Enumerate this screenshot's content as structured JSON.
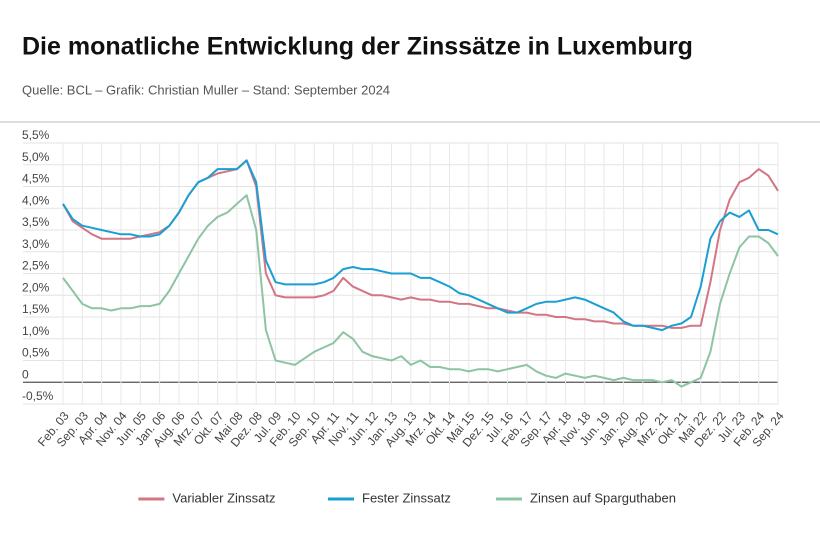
{
  "chart_data": {
    "type": "line",
    "title": "Die monatliche Entwicklung der Zinssätze in Luxemburg",
    "subtitle": "Quelle: BCL – Grafik: Christian Muller – Stand: September 2024",
    "categories": [
      "Feb. 03",
      null,
      "Sep. 03",
      null,
      "Apr. 04",
      null,
      "Nov. 04",
      null,
      "Jun. 05",
      null,
      "Jan. 06",
      null,
      "Aug. 06",
      null,
      "Mrz. 07",
      null,
      "Okt. 07",
      null,
      "Mai 08",
      null,
      "Dez. 08",
      null,
      "Jul. 09",
      null,
      "Feb. 10",
      null,
      "Sep. 10",
      null,
      "Apr. 11",
      null,
      "Nov. 11",
      null,
      "Jun. 12",
      null,
      "Jan. 13",
      null,
      "Aug. 13",
      null,
      "Mrz. 14",
      null,
      "Okt. 14",
      null,
      "Mai 15",
      null,
      "Dez. 15",
      null,
      "Jul. 16",
      null,
      "Feb. 17",
      null,
      "Sep. 17",
      null,
      "Apr. 18",
      null,
      "Nov. 18",
      null,
      "Jun. 19",
      null,
      "Jan. 20",
      null,
      "Aug. 20",
      null,
      "Mrz. 21",
      null,
      "Okt. 21",
      null,
      "Mai 22",
      null,
      "Dez. 22",
      null,
      "Jul. 23",
      null,
      "Feb. 24",
      null,
      "Sep. 24"
    ],
    "series": [
      {
        "name": "Variabler Zinssatz",
        "color": "#d27584",
        "values": [
          4.1,
          3.7,
          3.55,
          3.4,
          3.3,
          3.3,
          3.3,
          3.3,
          3.35,
          3.4,
          3.45,
          3.6,
          3.9,
          4.3,
          4.6,
          4.7,
          4.8,
          4.85,
          4.9,
          5.1,
          4.5,
          2.5,
          2.0,
          1.95,
          1.95,
          1.95,
          1.95,
          2.0,
          2.1,
          2.4,
          2.2,
          2.1,
          2.0,
          2.0,
          1.95,
          1.9,
          1.95,
          1.9,
          1.9,
          1.85,
          1.85,
          1.8,
          1.8,
          1.75,
          1.7,
          1.7,
          1.65,
          1.6,
          1.6,
          1.55,
          1.55,
          1.5,
          1.5,
          1.45,
          1.45,
          1.4,
          1.4,
          1.35,
          1.35,
          1.3,
          1.3,
          1.3,
          1.3,
          1.25,
          1.25,
          1.3,
          1.3,
          2.3,
          3.5,
          4.2,
          4.6,
          4.7,
          4.9,
          4.75,
          4.4
        ]
      },
      {
        "name": "Fester Zinssatz",
        "color": "#1a9fd3",
        "values": [
          4.1,
          3.75,
          3.6,
          3.55,
          3.5,
          3.45,
          3.4,
          3.4,
          3.35,
          3.35,
          3.4,
          3.6,
          3.9,
          4.3,
          4.6,
          4.7,
          4.9,
          4.9,
          4.9,
          5.1,
          4.6,
          2.8,
          2.3,
          2.25,
          2.25,
          2.25,
          2.25,
          2.3,
          2.4,
          2.6,
          2.65,
          2.6,
          2.6,
          2.55,
          2.5,
          2.5,
          2.5,
          2.4,
          2.4,
          2.3,
          2.2,
          2.05,
          2.0,
          1.9,
          1.8,
          1.7,
          1.6,
          1.6,
          1.7,
          1.8,
          1.85,
          1.85,
          1.9,
          1.95,
          1.9,
          1.8,
          1.7,
          1.6,
          1.4,
          1.3,
          1.3,
          1.25,
          1.2,
          1.3,
          1.35,
          1.5,
          2.2,
          3.3,
          3.7,
          3.9,
          3.8,
          3.95,
          3.5,
          3.5,
          3.4
        ]
      },
      {
        "name": "Zinsen auf Sparguthaben",
        "color": "#8dc4a3",
        "values": [
          2.4,
          2.1,
          1.8,
          1.7,
          1.7,
          1.65,
          1.7,
          1.7,
          1.75,
          1.75,
          1.8,
          2.1,
          2.5,
          2.9,
          3.3,
          3.6,
          3.8,
          3.9,
          4.1,
          4.3,
          3.5,
          1.2,
          0.5,
          0.45,
          0.4,
          0.55,
          0.7,
          0.8,
          0.9,
          1.15,
          1.0,
          0.7,
          0.6,
          0.55,
          0.5,
          0.6,
          0.4,
          0.5,
          0.35,
          0.35,
          0.3,
          0.3,
          0.25,
          0.3,
          0.3,
          0.25,
          0.3,
          0.35,
          0.4,
          0.25,
          0.15,
          0.1,
          0.2,
          0.15,
          0.1,
          0.15,
          0.1,
          0.05,
          0.1,
          0.05,
          0.05,
          0.05,
          0.0,
          0.05,
          -0.1,
          0.0,
          0.1,
          0.7,
          1.8,
          2.5,
          3.1,
          3.35,
          3.35,
          3.2,
          2.9
        ]
      }
    ],
    "ylim": [
      -0.5,
      5.5
    ],
    "yticks": [
      {
        "value": -0.5,
        "label": "-0,5%"
      },
      0,
      {
        "value": 0.5,
        "label": "0,5%"
      },
      {
        "value": 1,
        "label": "1,0%"
      },
      {
        "value": 1.5,
        "label": "1,5%"
      },
      {
        "value": 2,
        "label": "2,0%"
      },
      {
        "value": 2.5,
        "label": "2,5%"
      },
      {
        "value": 3,
        "label": "3,0%"
      },
      {
        "value": 3.5,
        "label": "3,5%"
      },
      {
        "value": 4,
        "label": "4,0%"
      },
      {
        "value": 4.5,
        "label": "4,5%"
      },
      {
        "value": 5,
        "label": "5,0%"
      },
      {
        "value": 5.5,
        "label": "5,5%"
      }
    ],
    "grid": true,
    "legend": "bottom"
  }
}
